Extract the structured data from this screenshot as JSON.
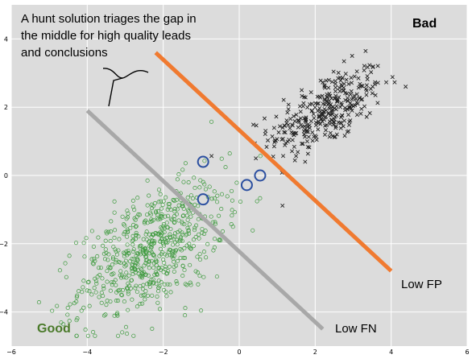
{
  "chart_data": {
    "type": "scatter",
    "title": "",
    "xlabel": "",
    "ylabel": "",
    "xlim": [
      -6,
      6
    ],
    "ylim": [
      -5,
      5
    ],
    "grid": true,
    "x_ticks": [
      -6,
      -4,
      -2,
      0,
      2,
      4,
      6
    ],
    "y_ticks": [
      -4,
      -2,
      0,
      2,
      4
    ],
    "x_tick_labels": [
      "−6",
      "−4",
      "−2",
      "0",
      "2",
      "4",
      "6"
    ],
    "y_tick_labels": [
      "−4",
      "−2",
      "0",
      "2",
      "4"
    ],
    "series": [
      {
        "marker": "x",
        "color": "#222222",
        "cluster": {
          "center": [
            2.3,
            1.9
          ],
          "spread": [
            0.75,
            0.65
          ],
          "correlation": 0.6,
          "count": 340
        }
      },
      {
        "marker": "o",
        "color": "#3d9a3d",
        "cluster": {
          "center": [
            -2.3,
            -2.2
          ],
          "spread": [
            0.95,
            1.0
          ],
          "correlation": 0.55,
          "count": 650
        }
      }
    ],
    "highlight_circles": [
      {
        "x": -0.95,
        "y": 0.4
      },
      {
        "x": -0.95,
        "y": -0.7
      },
      {
        "x": 0.2,
        "y": -0.28
      },
      {
        "x": 0.55,
        "y": 0.0
      }
    ],
    "lines": [
      {
        "label": "Low FP",
        "color": "#f07a30",
        "points": [
          [
            -2.2,
            3.6
          ],
          [
            4.0,
            -2.8
          ]
        ]
      },
      {
        "label": "Low FN",
        "color": "#a8a8a8",
        "points": [
          [
            -4.0,
            1.9
          ],
          [
            2.2,
            -4.5
          ]
        ]
      }
    ],
    "annotations": {
      "hunt_text": [
        "A hunt solution triages the gap in",
        "the middle for high quality leads",
        "and conclusions"
      ],
      "bad": "Bad",
      "good": "Good",
      "low_fp": "Low FP",
      "low_fn": "Low FN"
    },
    "colors": {
      "plot_background": "#dcdcdc",
      "grid": "#ffffff",
      "highlight": "#2b4fa0",
      "good_text": "#4a7a2a"
    }
  }
}
